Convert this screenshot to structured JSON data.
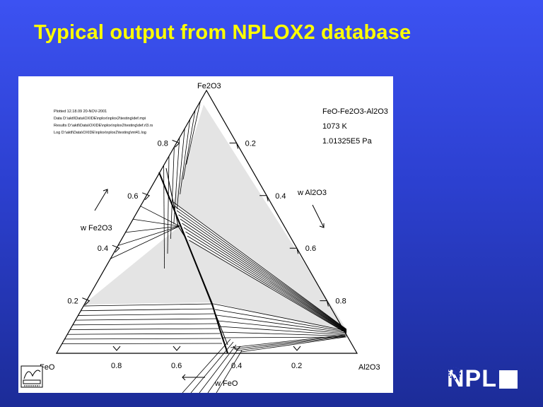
{
  "slide": {
    "title": "Typical output from NPLOX2 database"
  },
  "diagram": {
    "system": "FeO-Fe2O3-Al2O3",
    "temperature": "1073 K",
    "pressure": "1.01325E5 Pa",
    "vertices": {
      "top": "Fe2O3",
      "left": "FeO",
      "right": "Al2O3"
    },
    "axis_labels": {
      "left": "w Fe2O3",
      "right": "w Al2O3",
      "bottom": "w FeO"
    },
    "ticks": [
      "0.2",
      "0.4",
      "0.6",
      "0.8"
    ],
    "plot_info": [
      "Plotted 12.18.09 20-NOV-2001",
      "Data D:\\aktl\\Data\\OXIDE\\nplox\\nplox2\\testing\\def.mpi",
      "Results D:\\aktl\\Data\\OXIDE\\nplox\\nplox2\\testing\\def.rl3.rs",
      "Log D:\\aktl\\Data\\OXIDE\\nplox\\nplox2\\testing\\mt41.log"
    ],
    "colors": {
      "region": "#e4e4e4",
      "line": "#000000"
    }
  },
  "logo": {
    "text": "NPL",
    "software_logo": "MTDATA"
  }
}
